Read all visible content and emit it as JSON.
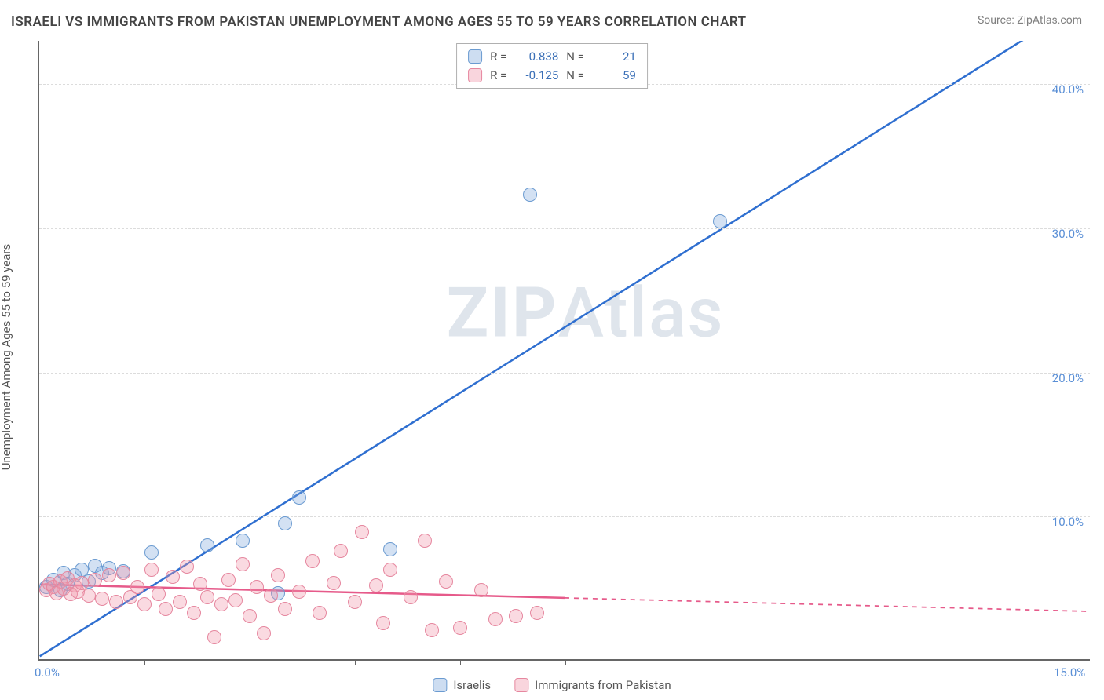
{
  "title": "ISRAELI VS IMMIGRANTS FROM PAKISTAN UNEMPLOYMENT AMONG AGES 55 TO 59 YEARS CORRELATION CHART",
  "source_label": "Source: ",
  "source_site": "ZipAtlas.com",
  "y_axis_label": "Unemployment Among Ages 55 to 59 years",
  "watermark_bold": "ZIP",
  "watermark_rest": "Atlas",
  "chart": {
    "type": "scatter",
    "background_color": "#ffffff",
    "grid_color": "#dcdcdc",
    "axis_color": "#666666",
    "font_color_axis": "#5a8fd6",
    "xlim": [
      0,
      15
    ],
    "ylim": [
      0,
      43
    ],
    "y_ticks": [
      10,
      20,
      30,
      40
    ],
    "y_tick_labels": [
      "10.0%",
      "20.0%",
      "30.0%",
      "40.0%"
    ],
    "x_ticks": [
      0,
      1.5,
      3.0,
      4.5,
      6.0,
      7.5,
      15
    ],
    "x_tick_labels_shown": {
      "0": "0.0%",
      "15": "15.0%"
    },
    "marker_size": 18,
    "series": [
      {
        "name": "Israelis",
        "color_fill": "rgba(130,170,220,0.35)",
        "color_stroke": "#6b9bd1",
        "regression": {
          "slope": 3.05,
          "intercept": 0.2,
          "color": "#2f6fd0",
          "width": 2.5,
          "x_solid_max": 15
        },
        "stats": {
          "R": "0.838",
          "N": "21"
        },
        "points": [
          [
            0.1,
            5.0
          ],
          [
            0.2,
            5.5
          ],
          [
            0.3,
            4.8
          ],
          [
            0.35,
            6.0
          ],
          [
            0.4,
            5.2
          ],
          [
            0.5,
            5.8
          ],
          [
            0.6,
            6.2
          ],
          [
            0.7,
            5.4
          ],
          [
            0.8,
            6.5
          ],
          [
            0.9,
            6.0
          ],
          [
            1.0,
            6.3
          ],
          [
            1.2,
            6.1
          ],
          [
            1.6,
            7.4
          ],
          [
            2.4,
            7.9
          ],
          [
            2.9,
            8.2
          ],
          [
            3.4,
            4.6
          ],
          [
            3.5,
            9.4
          ],
          [
            3.7,
            11.2
          ],
          [
            5.0,
            7.6
          ],
          [
            7.0,
            32.2
          ],
          [
            9.7,
            30.4
          ]
        ]
      },
      {
        "name": "Immigrants from Pakistan",
        "color_fill": "rgba(240,150,170,0.35)",
        "color_stroke": "#e6879f",
        "regression": {
          "slope": -0.125,
          "intercept": 5.2,
          "color": "#e65a8a",
          "width": 2.5,
          "x_solid_max": 7.5
        },
        "stats": {
          "R": "-0.125",
          "N": "59"
        },
        "points": [
          [
            0.1,
            4.8
          ],
          [
            0.15,
            5.2
          ],
          [
            0.2,
            5.0
          ],
          [
            0.25,
            4.6
          ],
          [
            0.3,
            5.4
          ],
          [
            0.35,
            4.9
          ],
          [
            0.4,
            5.6
          ],
          [
            0.45,
            4.5
          ],
          [
            0.5,
            5.1
          ],
          [
            0.55,
            4.7
          ],
          [
            0.6,
            5.3
          ],
          [
            0.7,
            4.4
          ],
          [
            0.8,
            5.5
          ],
          [
            0.9,
            4.2
          ],
          [
            1.0,
            5.8
          ],
          [
            1.1,
            4.0
          ],
          [
            1.2,
            6.0
          ],
          [
            1.3,
            4.3
          ],
          [
            1.4,
            5.0
          ],
          [
            1.5,
            3.8
          ],
          [
            1.6,
            6.2
          ],
          [
            1.7,
            4.5
          ],
          [
            1.8,
            3.5
          ],
          [
            1.9,
            5.7
          ],
          [
            2.0,
            4.0
          ],
          [
            2.1,
            6.4
          ],
          [
            2.2,
            3.2
          ],
          [
            2.3,
            5.2
          ],
          [
            2.4,
            4.3
          ],
          [
            2.5,
            1.5
          ],
          [
            2.6,
            3.8
          ],
          [
            2.7,
            5.5
          ],
          [
            2.8,
            4.1
          ],
          [
            2.9,
            6.6
          ],
          [
            3.0,
            3.0
          ],
          [
            3.1,
            5.0
          ],
          [
            3.2,
            1.8
          ],
          [
            3.3,
            4.4
          ],
          [
            3.4,
            5.8
          ],
          [
            3.5,
            3.5
          ],
          [
            3.7,
            4.7
          ],
          [
            3.9,
            6.8
          ],
          [
            4.0,
            3.2
          ],
          [
            4.2,
            5.3
          ],
          [
            4.3,
            7.5
          ],
          [
            4.5,
            4.0
          ],
          [
            4.6,
            8.8
          ],
          [
            4.8,
            5.1
          ],
          [
            4.9,
            2.5
          ],
          [
            5.0,
            6.2
          ],
          [
            5.3,
            4.3
          ],
          [
            5.5,
            8.2
          ],
          [
            5.6,
            2.0
          ],
          [
            5.8,
            5.4
          ],
          [
            6.0,
            2.2
          ],
          [
            6.3,
            4.8
          ],
          [
            6.5,
            2.8
          ],
          [
            6.8,
            3.0
          ],
          [
            7.1,
            3.2
          ]
        ]
      }
    ]
  },
  "stats_legend": {
    "r_label": "R  =",
    "n_label": "N  ="
  },
  "bottom_legend": {
    "series1": "Israelis",
    "series2": "Immigrants from Pakistan"
  }
}
